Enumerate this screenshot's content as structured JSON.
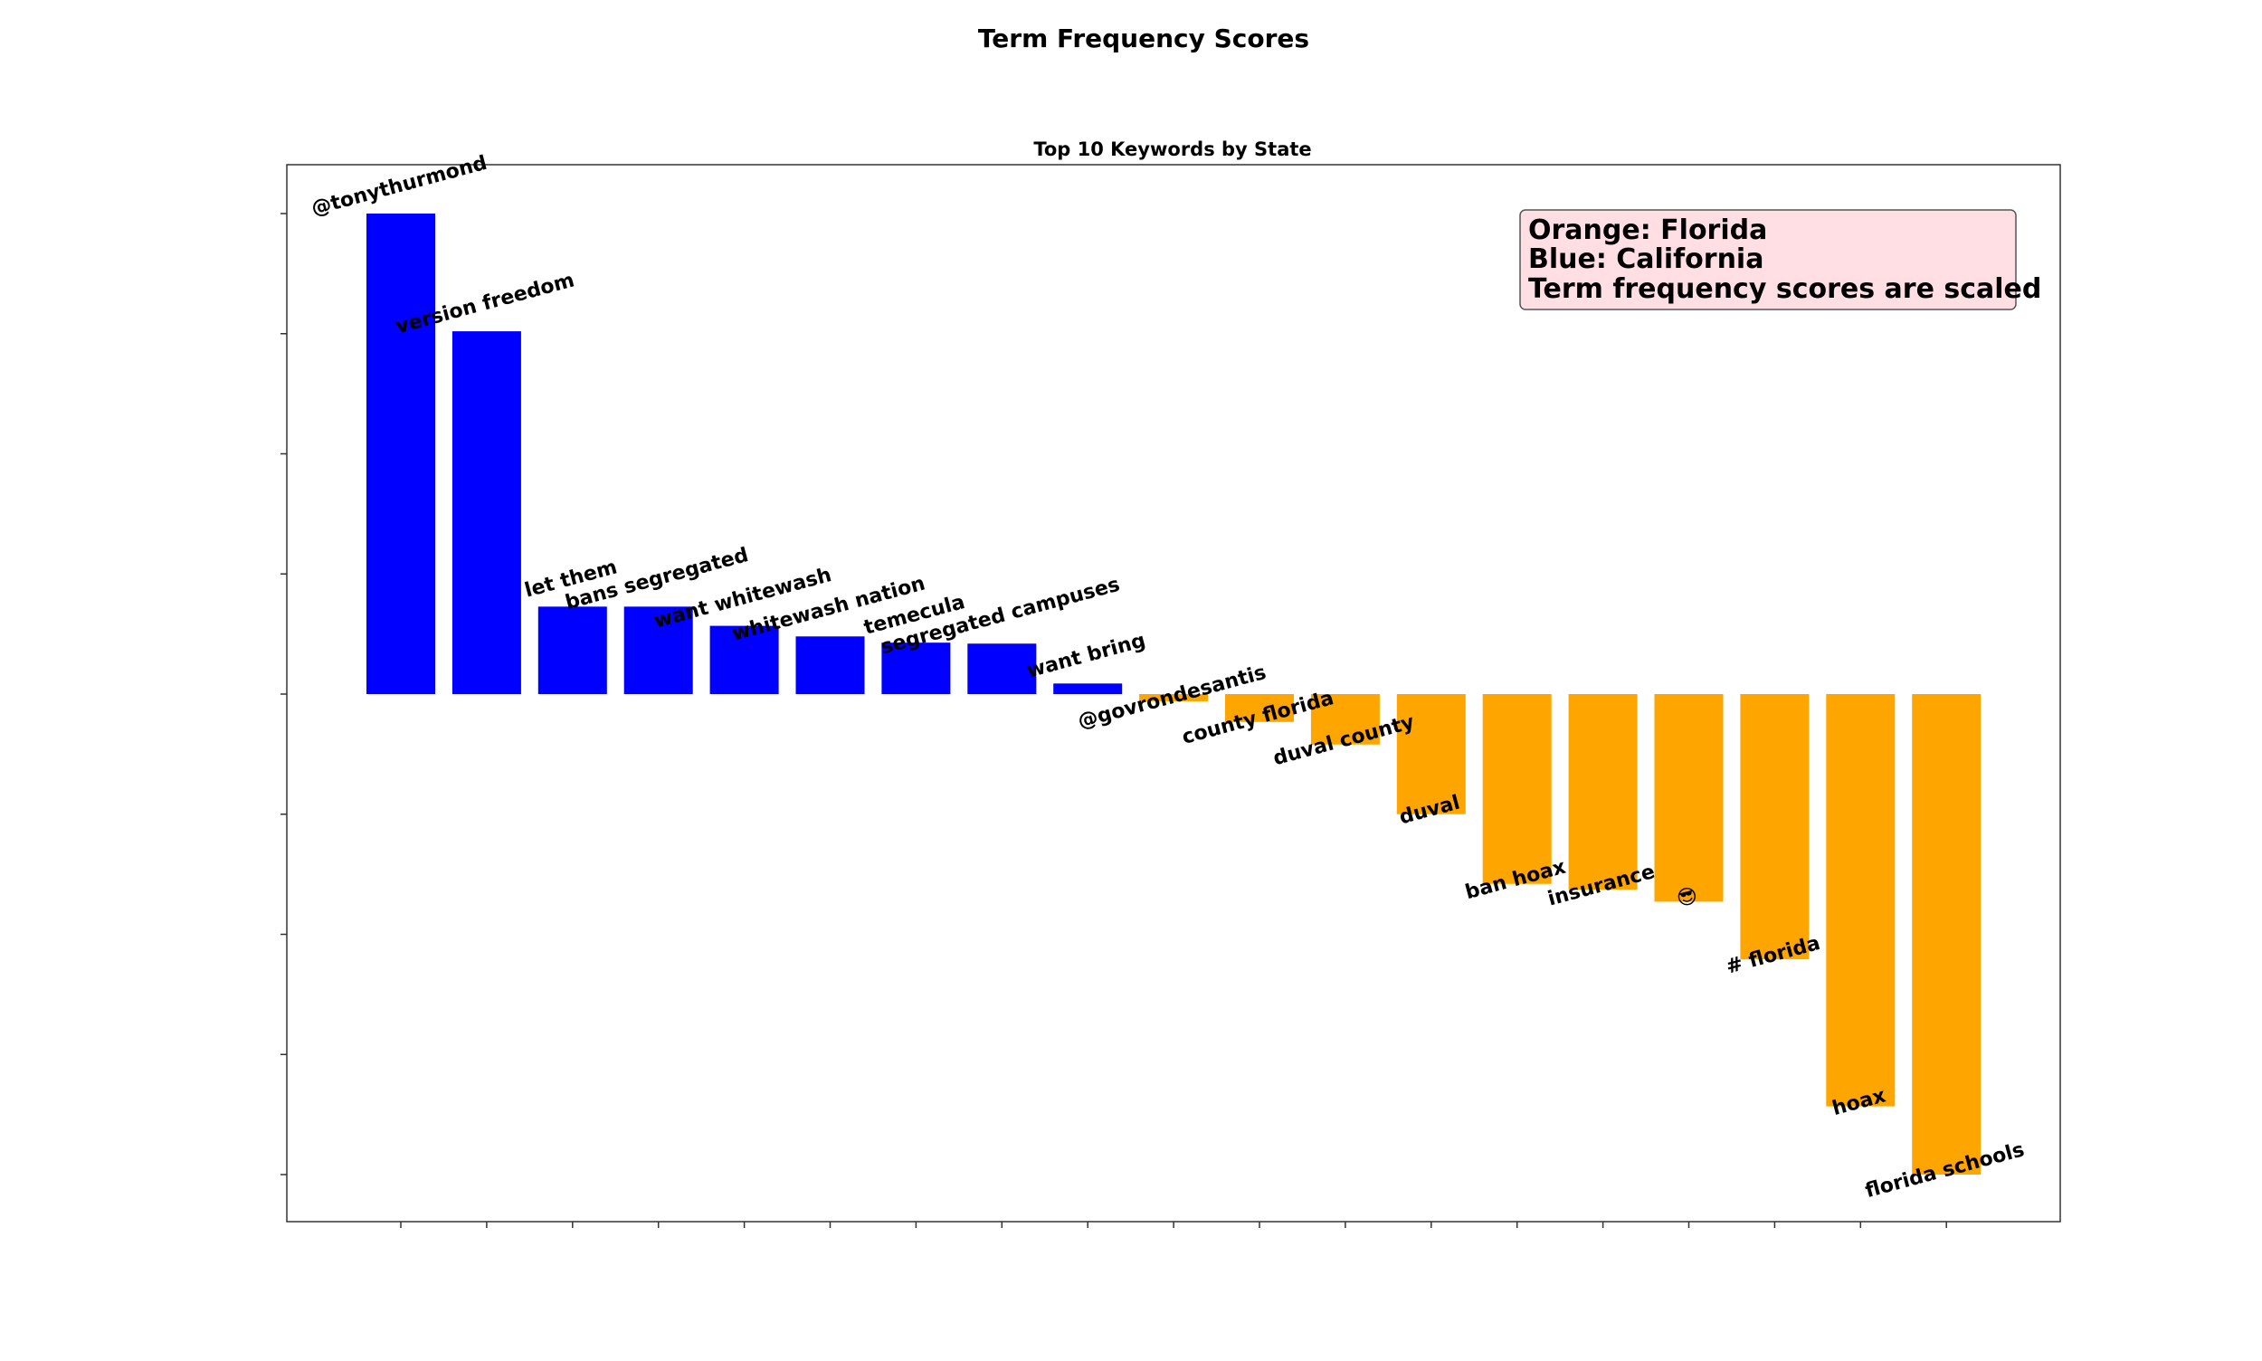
{
  "figure_title": "Term Frequency Scores",
  "chart_data": {
    "type": "bar",
    "title": "Top 10 Keywords by State",
    "xlabel": "",
    "ylabel": "",
    "ylim": [
      -1.1,
      1.1
    ],
    "grid": false,
    "tick_labels_visible": false,
    "legend": {
      "placement": "top-right",
      "lines": [
        "Orange: Florida",
        "Blue: California",
        "Term frequency scores are scaled"
      ]
    },
    "colors": {
      "California": "#0000ff",
      "Florida": "#ffa500",
      "legend_bg": "#ffdfe3"
    },
    "categories": [
      "@tonythurmond",
      "version freedom",
      "let them",
      "bans segregated",
      "want whitewash",
      "whitewash nation",
      "temecula",
      "segregated campuses",
      "want bring",
      "@govrondesantis",
      "county florida",
      "duval county",
      "duval",
      "ban hoax",
      "insurance",
      "😎",
      "# florida",
      "hoax",
      "florida schools"
    ],
    "values": [
      1.0,
      0.755,
      0.182,
      0.182,
      0.142,
      0.12,
      0.107,
      0.105,
      0.022,
      -0.015,
      -0.058,
      -0.105,
      -0.25,
      -0.395,
      -0.407,
      -0.432,
      -0.552,
      -0.858,
      -1.0
    ],
    "series_state": [
      "California",
      "California",
      "California",
      "California",
      "California",
      "California",
      "California",
      "California",
      "California",
      "Florida",
      "Florida",
      "Florida",
      "Florida",
      "Florida",
      "Florida",
      "Florida",
      "Florida",
      "Florida",
      "Florida"
    ]
  }
}
